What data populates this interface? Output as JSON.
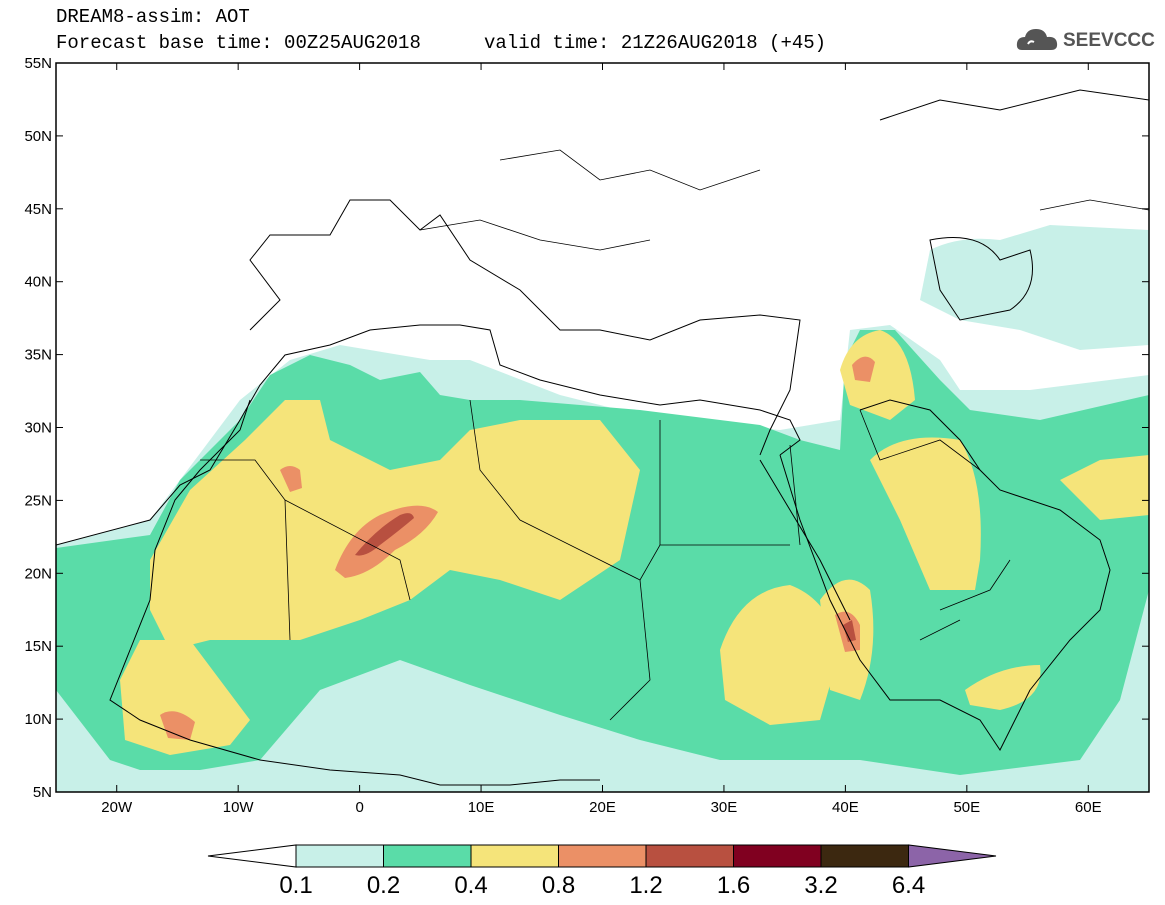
{
  "header": {
    "line1": "DREAM8-assim: AOT",
    "line2": "Forecast base time: 00Z25AUG2018",
    "valid": "valid time: 21Z26AUG2018 (+45)"
  },
  "logo": {
    "text": "SEEVCCC",
    "icon": "cloud-icon"
  },
  "map": {
    "lon_range": [
      -25,
      65
    ],
    "lat_range": [
      5,
      55
    ],
    "lat_labels": [
      "55N",
      "50N",
      "45N",
      "40N",
      "35N",
      "30N",
      "25N",
      "20N",
      "15N",
      "10N",
      "5N"
    ],
    "lon_labels": [
      "20W",
      "10W",
      "0",
      "10E",
      "20E",
      "30E",
      "40E",
      "50E",
      "60E"
    ]
  },
  "colorbar": {
    "labels": [
      "0.1",
      "0.2",
      "0.4",
      "0.8",
      "1.2",
      "1.6",
      "3.2",
      "6.4"
    ],
    "colors": [
      "#ffffff",
      "#c8f0e8",
      "#5adca8",
      "#f5e47a",
      "#eb9066",
      "#b85040",
      "#800020",
      "#3c2810",
      "#8c64a8"
    ]
  }
}
